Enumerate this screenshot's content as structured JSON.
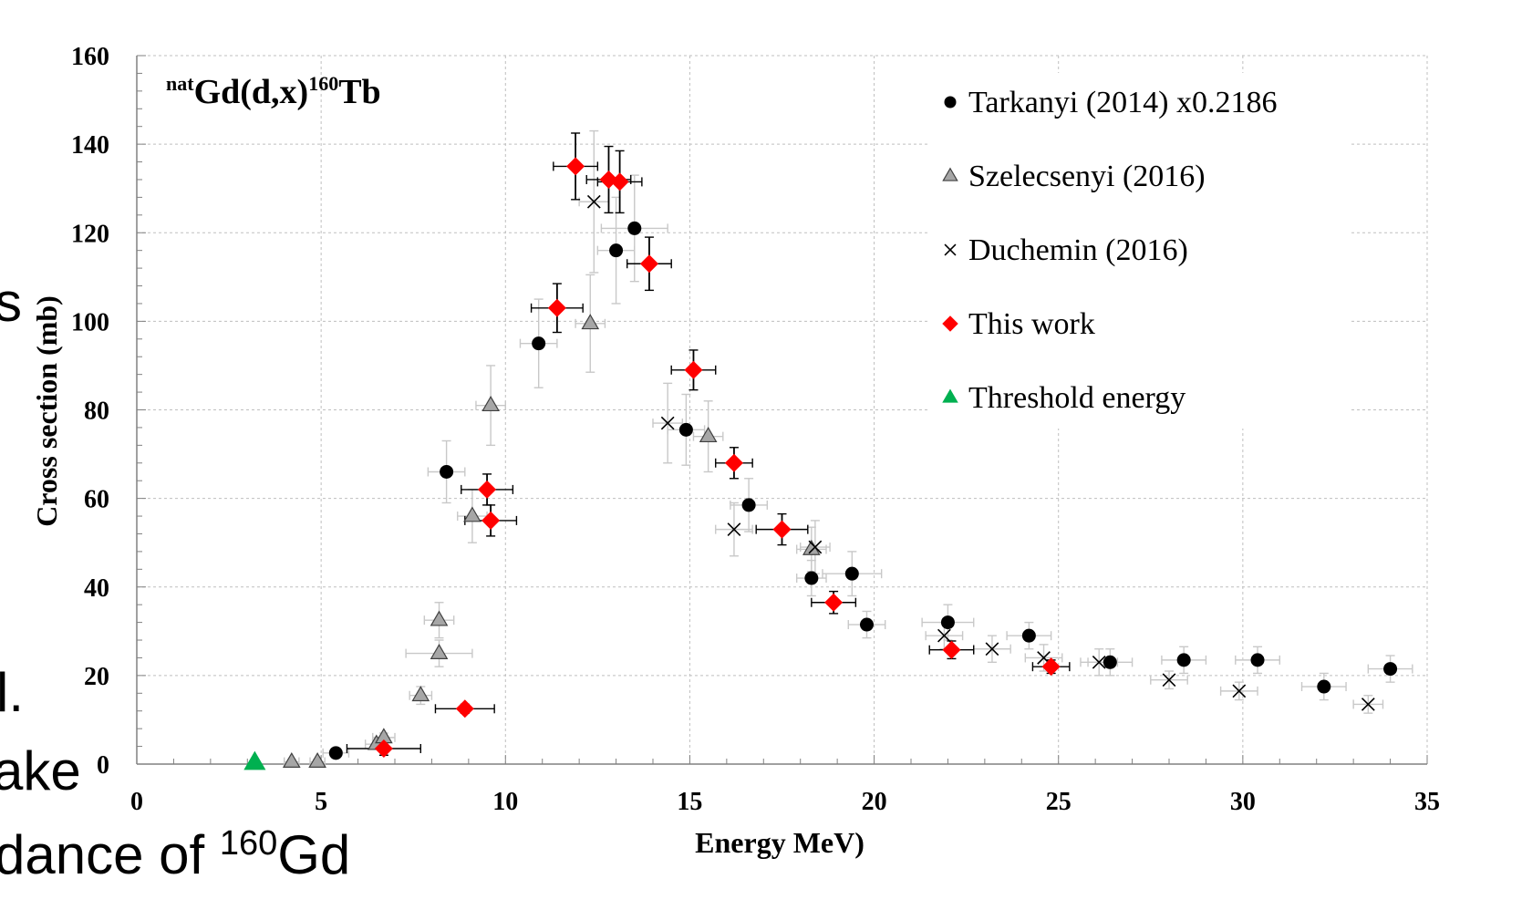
{
  "background_text": {
    "fragment_s": "s",
    "fragment_l": "l.",
    "fragment_ake": "ake",
    "fragment_dance_pre": "dance of ",
    "fragment_dance_sup": "160",
    "fragment_dance_post": "Gd"
  },
  "chart_data": {
    "type": "scatter",
    "title_parts": {
      "pre_sup": "nat",
      "main": "Gd(d,x)",
      "post_sup": "160",
      "tail": "Tb"
    },
    "xlabel": "Energy MeV)",
    "ylabel": "Cross section (mb)",
    "xlim": [
      0,
      35
    ],
    "ylim": [
      0,
      160
    ],
    "xticks": [
      "0",
      "5",
      "10",
      "15",
      "20",
      "25",
      "30",
      "35"
    ],
    "yticks": [
      "0",
      "20",
      "40",
      "60",
      "80",
      "100",
      "120",
      "140",
      "160"
    ],
    "grid": true,
    "legend_position": "top-right",
    "series": [
      {
        "name": "Tarkanyi (2014) x0.2186",
        "marker": "circle",
        "color": "#000000",
        "points": [
          {
            "x": 5.4,
            "y": 2.5,
            "xerr": 0.35,
            "yerr": 1
          },
          {
            "x": 8.4,
            "y": 66,
            "xerr": 0.5,
            "yerr": 7
          },
          {
            "x": 10.9,
            "y": 95,
            "xerr": 0.5,
            "yerr": 10
          },
          {
            "x": 13.0,
            "y": 116,
            "xerr": 0.5,
            "yerr": 12
          },
          {
            "x": 13.5,
            "y": 121,
            "xerr": 0.9,
            "yerr": 12
          },
          {
            "x": 14.9,
            "y": 75.5,
            "xerr": 0.5,
            "yerr": 8
          },
          {
            "x": 16.6,
            "y": 58.5,
            "xerr": 0.5,
            "yerr": 6
          },
          {
            "x": 18.3,
            "y": 42,
            "xerr": 0.4,
            "yerr": 4
          },
          {
            "x": 19.4,
            "y": 43,
            "xerr": 0.8,
            "yerr": 5
          },
          {
            "x": 19.8,
            "y": 31.5,
            "xerr": 0.5,
            "yerr": 3
          },
          {
            "x": 22.0,
            "y": 32,
            "xerr": 0.7,
            "yerr": 4
          },
          {
            "x": 24.2,
            "y": 29,
            "xerr": 0.6,
            "yerr": 3
          },
          {
            "x": 26.4,
            "y": 23,
            "xerr": 0.6,
            "yerr": 3
          },
          {
            "x": 28.4,
            "y": 23.5,
            "xerr": 0.6,
            "yerr": 3
          },
          {
            "x": 30.4,
            "y": 23.5,
            "xerr": 0.6,
            "yerr": 3
          },
          {
            "x": 32.2,
            "y": 17.5,
            "xerr": 0.6,
            "yerr": 3
          },
          {
            "x": 34.0,
            "y": 21.5,
            "xerr": 0.6,
            "yerr": 3
          }
        ]
      },
      {
        "name": "Szelecsenyi (2016)",
        "marker": "triangle",
        "color": "#a6a6a6",
        "points": [
          {
            "x": 4.2,
            "y": 0.5,
            "xerr": 0.2,
            "yerr": 0.5
          },
          {
            "x": 4.9,
            "y": 0.5,
            "xerr": 0.2,
            "yerr": 0.5
          },
          {
            "x": 6.5,
            "y": 4.5,
            "xerr": 0.3,
            "yerr": 1
          },
          {
            "x": 6.7,
            "y": 6,
            "xerr": 0.3,
            "yerr": 1
          },
          {
            "x": 7.7,
            "y": 15.5,
            "xerr": 0.3,
            "yerr": 2
          },
          {
            "x": 8.2,
            "y": 25,
            "xerr": 0.9,
            "yerr": 3
          },
          {
            "x": 8.2,
            "y": 32.5,
            "xerr": 0.4,
            "yerr": 4
          },
          {
            "x": 9.1,
            "y": 56,
            "xerr": 0.4,
            "yerr": 6
          },
          {
            "x": 9.6,
            "y": 81,
            "xerr": 0.4,
            "yerr": 9
          },
          {
            "x": 12.3,
            "y": 99.5,
            "xerr": 0.4,
            "yerr": 11
          },
          {
            "x": 15.5,
            "y": 74,
            "xerr": 0.4,
            "yerr": 8
          },
          {
            "x": 18.3,
            "y": 48.5,
            "xerr": 0.4,
            "yerr": 5
          }
        ]
      },
      {
        "name": "Duchemin (2016)",
        "marker": "x",
        "color": "#000000",
        "points": [
          {
            "x": 12.4,
            "y": 127,
            "xerr": 0.4,
            "yerr": 16
          },
          {
            "x": 14.4,
            "y": 77,
            "xerr": 0.4,
            "yerr": 9
          },
          {
            "x": 16.2,
            "y": 53,
            "xerr": 0.5,
            "yerr": 6
          },
          {
            "x": 18.4,
            "y": 49,
            "xerr": 0.4,
            "yerr": 6
          },
          {
            "x": 21.9,
            "y": 29,
            "xerr": 0.5,
            "yerr": 3
          },
          {
            "x": 23.2,
            "y": 26,
            "xerr": 0.5,
            "yerr": 3
          },
          {
            "x": 24.6,
            "y": 24,
            "xerr": 0.5,
            "yerr": 3
          },
          {
            "x": 26.1,
            "y": 23,
            "xerr": 0.5,
            "yerr": 3
          },
          {
            "x": 28.0,
            "y": 19,
            "xerr": 0.5,
            "yerr": 2
          },
          {
            "x": 29.9,
            "y": 16.5,
            "xerr": 0.5,
            "yerr": 2
          },
          {
            "x": 33.4,
            "y": 13.5,
            "xerr": 0.4,
            "yerr": 2
          }
        ]
      },
      {
        "name": "This work",
        "marker": "diamond",
        "color": "#ff0000",
        "points": [
          {
            "x": 6.7,
            "y": 3.5,
            "xerr": 1.0,
            "yerr": 1.5
          },
          {
            "x": 8.9,
            "y": 12.5,
            "xerr": 0.8,
            "yerr": 1
          },
          {
            "x": 9.5,
            "y": 62,
            "xerr": 0.7,
            "yerr": 3.5
          },
          {
            "x": 9.6,
            "y": 55,
            "xerr": 0.7,
            "yerr": 3.5
          },
          {
            "x": 11.4,
            "y": 103,
            "xerr": 0.7,
            "yerr": 5.5
          },
          {
            "x": 11.9,
            "y": 135,
            "xerr": 0.6,
            "yerr": 7.5
          },
          {
            "x": 12.8,
            "y": 132,
            "xerr": 0.6,
            "yerr": 7.5
          },
          {
            "x": 13.1,
            "y": 131.5,
            "xerr": 0.6,
            "yerr": 7
          },
          {
            "x": 13.9,
            "y": 113,
            "xerr": 0.6,
            "yerr": 6
          },
          {
            "x": 15.1,
            "y": 89,
            "xerr": 0.6,
            "yerr": 4.5
          },
          {
            "x": 16.2,
            "y": 68,
            "xerr": 0.5,
            "yerr": 3.5
          },
          {
            "x": 17.5,
            "y": 53,
            "xerr": 0.7,
            "yerr": 3.5
          },
          {
            "x": 18.9,
            "y": 36.5,
            "xerr": 0.6,
            "yerr": 2.5
          },
          {
            "x": 22.1,
            "y": 25.8,
            "xerr": 0.6,
            "yerr": 2
          },
          {
            "x": 24.8,
            "y": 22,
            "xerr": 0.5,
            "yerr": 1.5
          }
        ]
      },
      {
        "name": "Threshold energy",
        "marker": "triangle",
        "color": "#00b050",
        "points": [
          {
            "x": 3.2,
            "y": 0.3,
            "xerr": 0,
            "yerr": 0
          }
        ]
      }
    ]
  }
}
